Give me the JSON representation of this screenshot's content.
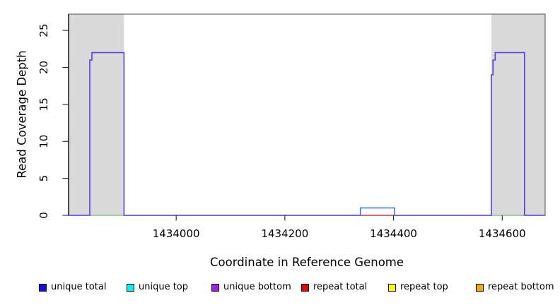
{
  "chart_data": {
    "type": "line",
    "title": "",
    "xlabel": "Coordinate in Reference Genome",
    "ylabel": "Read Coverage Depth",
    "xlim": [
      1433802,
      1434679
    ],
    "ylim": [
      0,
      27.2
    ],
    "x_ticks": [
      1434000,
      1434200,
      1434400,
      1434600
    ],
    "y_ticks": [
      0,
      5,
      10,
      15,
      20,
      25
    ],
    "grid": false,
    "legend_position": "bottom",
    "shaded_regions": [
      {
        "name": "left-shaded-region",
        "x0": 1433802,
        "x1": 1433904,
        "color": "#d9d9d9"
      },
      {
        "name": "right-shaded-region",
        "x0": 1434580,
        "x1": 1434679,
        "color": "#d9d9d9"
      }
    ],
    "series": [
      {
        "name": "zero-depth-under-left-block",
        "draw_color": "#8fcf8f",
        "line_width": 1.4,
        "points": [
          [
            1433841,
            0
          ],
          [
            1433904,
            0
          ]
        ]
      },
      {
        "name": "zero-depth-under-right-block",
        "draw_color": "#8fcf8f",
        "line_width": 1.4,
        "points": [
          [
            1434580,
            0
          ],
          [
            1434641,
            0
          ]
        ]
      },
      {
        "name": "unique-coverage-outline",
        "draw_color": "#5b38f0",
        "line_width": 1.6,
        "points": [
          [
            1433802,
            0
          ],
          [
            1433841,
            0
          ],
          [
            1433841,
            21
          ],
          [
            1433845,
            21
          ],
          [
            1433845,
            22
          ],
          [
            1433904,
            22
          ],
          [
            1433904,
            0
          ],
          [
            1434580,
            0
          ],
          [
            1434580,
            19
          ],
          [
            1434583,
            19
          ],
          [
            1434583,
            21
          ],
          [
            1434587,
            21
          ],
          [
            1434587,
            22
          ],
          [
            1434641,
            22
          ],
          [
            1434641,
            0
          ],
          [
            1434679,
            0
          ]
        ]
      },
      {
        "name": "repeat-total-under-bump",
        "draw_color": "#f05555",
        "line_width": 1.4,
        "points": [
          [
            1434339,
            0
          ],
          [
            1434402,
            0
          ]
        ]
      },
      {
        "name": "unique-total-bump",
        "draw_color": "#3a72f5",
        "line_width": 1.6,
        "points": [
          [
            1434339,
            0
          ],
          [
            1434339,
            1
          ],
          [
            1434402,
            1
          ],
          [
            1434402,
            0
          ]
        ]
      }
    ],
    "legend": [
      {
        "label": "unique total",
        "color": "#0f0fee"
      },
      {
        "label": "unique top",
        "color": "#00f0f0"
      },
      {
        "label": "unique bottom",
        "color": "#a020f0"
      },
      {
        "label": "repeat total",
        "color": "#f00000"
      },
      {
        "label": "repeat top",
        "color": "#ffff00"
      },
      {
        "label": "repeat bottom",
        "color": "#f5a51d"
      }
    ]
  }
}
